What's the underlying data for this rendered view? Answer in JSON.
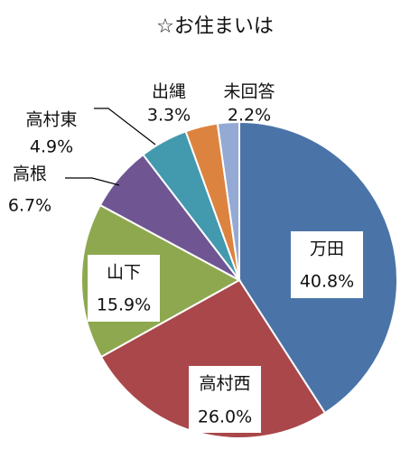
{
  "chart_data": {
    "type": "pie",
    "title": "☆お住まいは",
    "categories": [
      "万田",
      "高村西",
      "山下",
      "高根",
      "高村東",
      "出縄",
      "未回答"
    ],
    "values": [
      40.8,
      26.0,
      15.9,
      6.7,
      4.9,
      3.3,
      2.2
    ],
    "value_labels": [
      "40.8%",
      "26.0%",
      "15.9%",
      "6.7%",
      "4.9%",
      "3.3%",
      "2.2%"
    ],
    "colors": [
      "#4a74a8",
      "#a9474a",
      "#8ea84f",
      "#6f5693",
      "#4399ae",
      "#dd8340",
      "#94aad4"
    ]
  }
}
